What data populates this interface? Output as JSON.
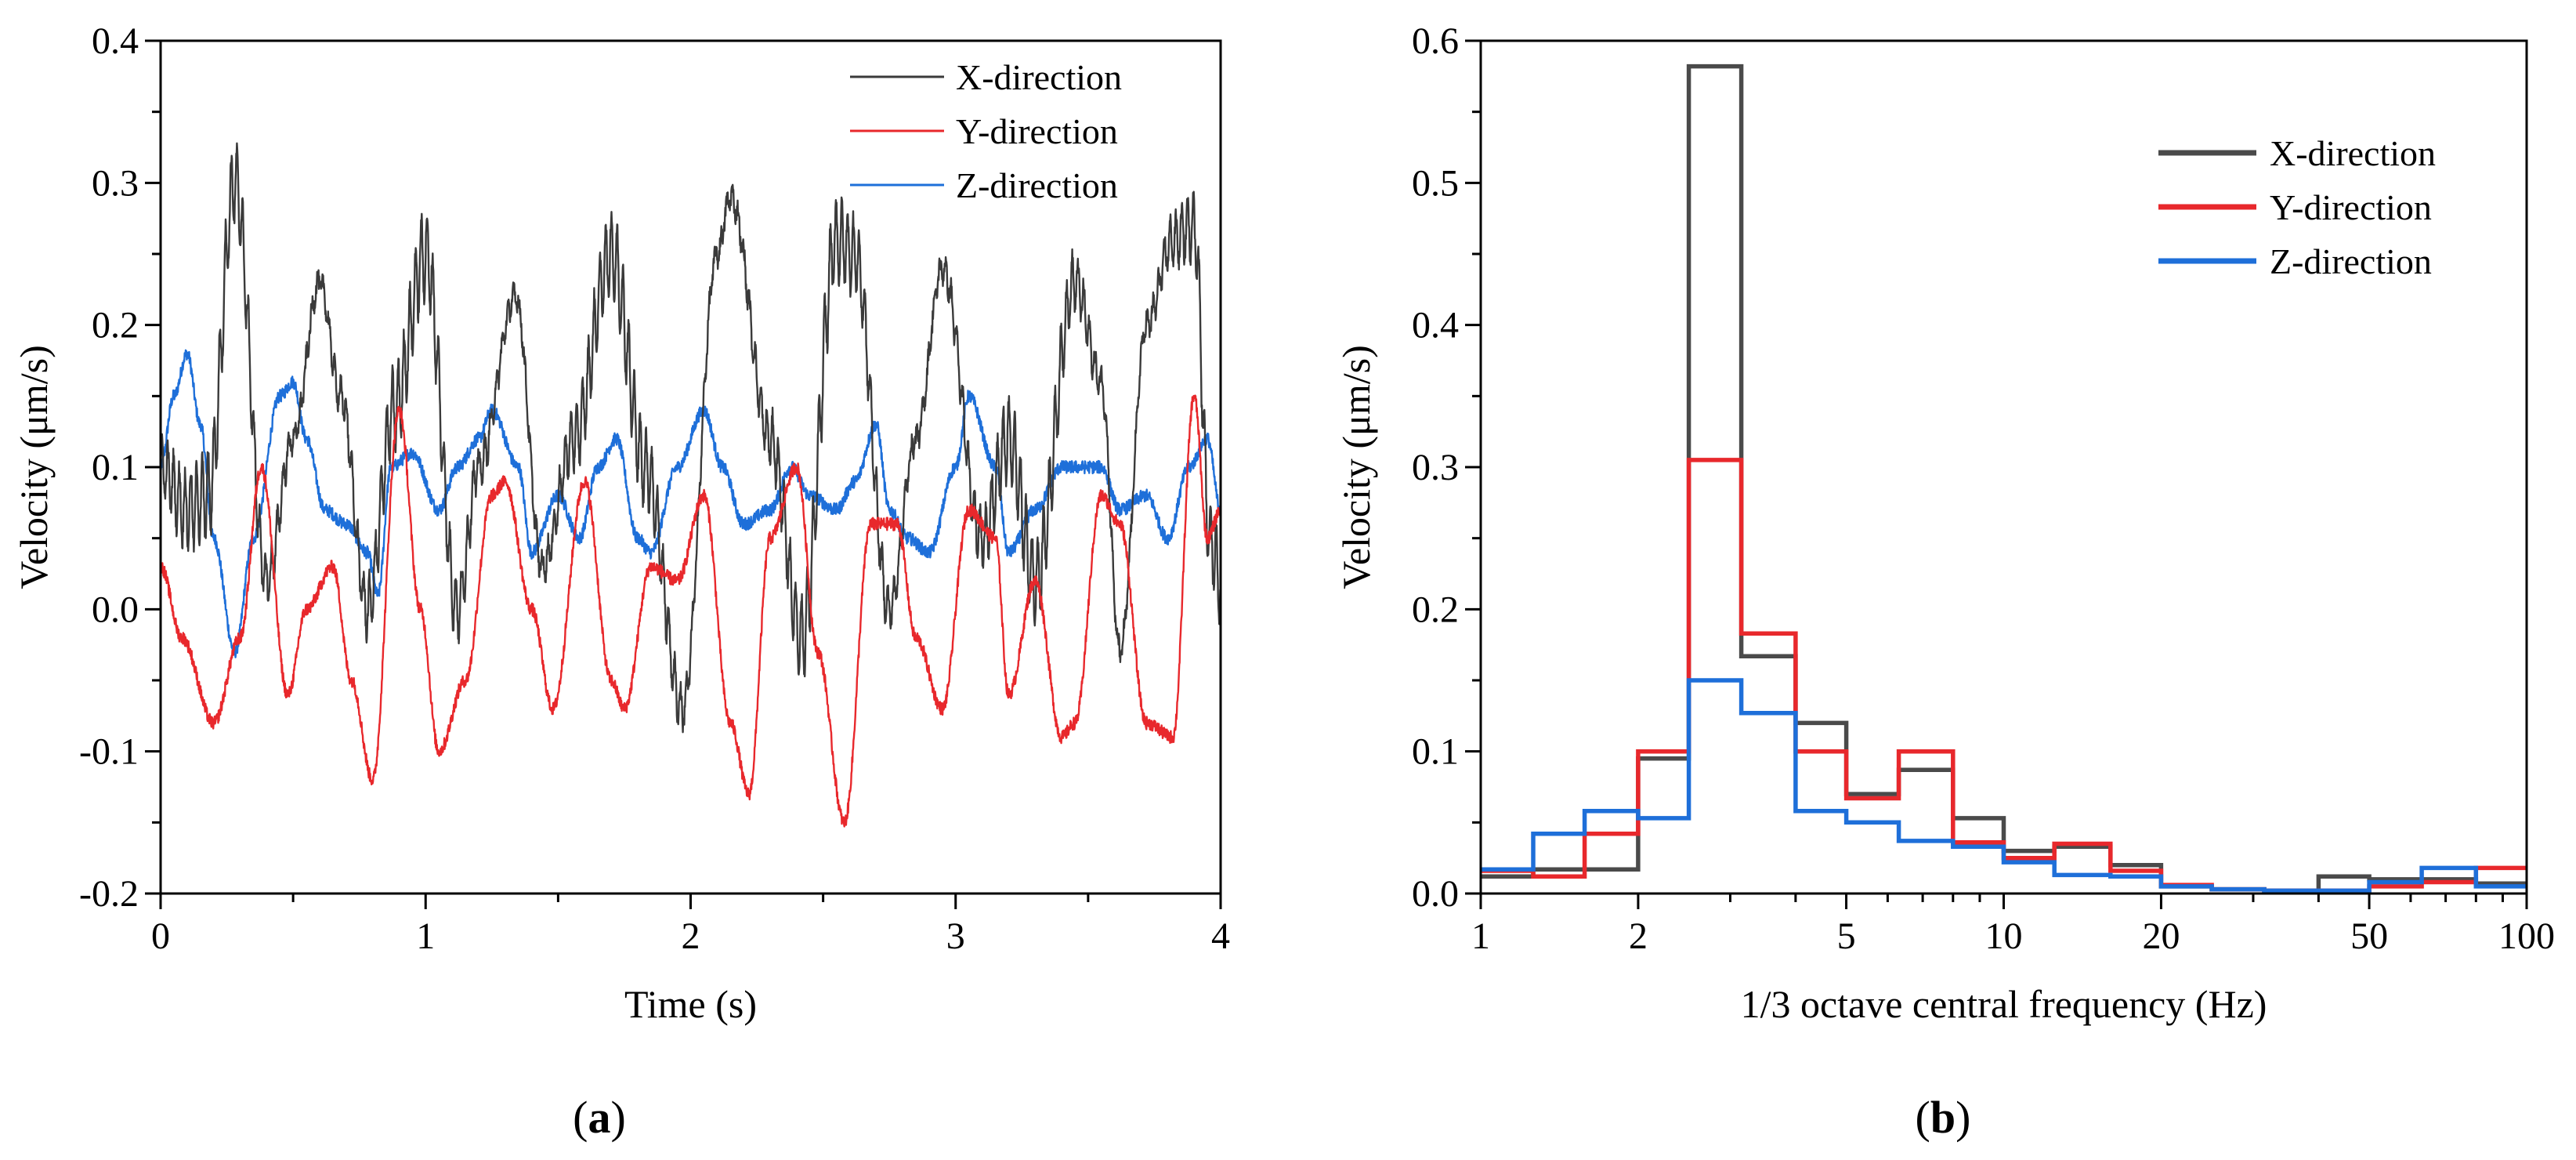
{
  "chart_data": [
    {
      "id": "a",
      "type": "line",
      "panel_label": "(a)",
      "title": "",
      "xlabel": "Time (s)",
      "ylabel": "Velocity (μm/s)",
      "xlim": [
        0,
        4
      ],
      "ylim": [
        -0.2,
        0.4
      ],
      "xticks": [
        0,
        1,
        2,
        3,
        4
      ],
      "xtick_labels": [
        "0",
        "1",
        "2",
        "3",
        "4"
      ],
      "yticks": [
        -0.2,
        -0.1,
        0.0,
        0.1,
        0.2,
        0.3,
        0.4
      ],
      "ytick_labels": [
        "-0.2",
        "-0.1",
        "0.0",
        "0.1",
        "0.2",
        "0.3",
        "0.4"
      ],
      "grid": false,
      "legend_position": "top-right",
      "series": [
        {
          "name": "X-direction",
          "color": "#3a3a3a",
          "envelope": {
            "t": [
              0,
              0.1,
              0.18,
              0.28,
              0.4,
              0.5,
              0.6,
              0.68,
              0.78,
              0.88,
              1.0,
              1.12,
              1.2,
              1.34,
              1.44,
              1.56,
              1.7,
              1.83,
              1.97,
              2.1,
              2.15,
              2.3,
              2.42,
              2.55,
              2.62,
              2.75,
              2.85,
              2.95,
              3.1,
              3.2,
              3.3,
              3.45,
              3.55,
              3.62,
              3.72,
              3.82,
              3.9,
              3.96,
              4.0
            ],
            "v": [
              0.1,
              0.07,
              0.08,
              0.3,
              0.02,
              0.12,
              0.23,
              0.15,
              0.0,
              0.14,
              0.25,
              0.0,
              0.1,
              0.22,
              0.03,
              0.12,
              0.25,
              0.1,
              -0.07,
              0.25,
              0.29,
              0.12,
              -0.02,
              0.26,
              0.25,
              0.0,
              0.12,
              0.24,
              0.05,
              0.12,
              0.02,
              0.23,
              0.16,
              -0.03,
              0.2,
              0.26,
              0.27,
              0.05,
              0.02
            ]
          },
          "ripple_amplitude": 0.03
        },
        {
          "name": "Y-direction",
          "color": "#e8282c",
          "points": {
            "t": [
              0,
              0.08,
              0.2,
              0.3,
              0.38,
              0.48,
              0.55,
              0.65,
              0.72,
              0.8,
              0.9,
              0.98,
              1.05,
              1.15,
              1.25,
              1.3,
              1.4,
              1.48,
              1.6,
              1.7,
              1.75,
              1.85,
              1.95,
              2.05,
              2.15,
              2.22,
              2.3,
              2.4,
              2.48,
              2.58,
              2.68,
              2.78,
              2.85,
              2.95,
              3.05,
              3.15,
              3.2,
              3.3,
              3.4,
              3.45,
              3.55,
              3.62,
              3.72,
              3.82,
              3.9,
              3.95,
              4.0
            ],
            "v": [
              0.03,
              -0.02,
              -0.08,
              -0.02,
              0.1,
              -0.06,
              0.0,
              0.03,
              -0.05,
              -0.12,
              0.14,
              0.0,
              -0.1,
              -0.05,
              0.08,
              0.09,
              0.0,
              -0.07,
              0.09,
              -0.05,
              -0.07,
              0.03,
              0.02,
              0.08,
              -0.08,
              -0.13,
              0.05,
              0.1,
              -0.03,
              -0.15,
              0.06,
              0.06,
              -0.02,
              -0.07,
              0.07,
              0.05,
              -0.06,
              0.02,
              -0.09,
              -0.08,
              0.08,
              0.06,
              -0.08,
              -0.09,
              0.15,
              0.05,
              0.07
            ]
          }
        },
        {
          "name": "Z-direction",
          "color": "#1e6fd9",
          "points": {
            "t": [
              0,
              0.05,
              0.1,
              0.15,
              0.2,
              0.28,
              0.35,
              0.45,
              0.5,
              0.55,
              0.62,
              0.7,
              0.78,
              0.82,
              0.87,
              0.95,
              1.05,
              1.12,
              1.2,
              1.25,
              1.35,
              1.4,
              1.5,
              1.58,
              1.65,
              1.72,
              1.8,
              1.85,
              1.95,
              2.05,
              2.12,
              2.2,
              2.3,
              2.38,
              2.45,
              2.55,
              2.62,
              2.7,
              2.75,
              2.82,
              2.9,
              3.0,
              3.05,
              3.15,
              3.2,
              3.3,
              3.4,
              3.48,
              3.55,
              3.62,
              3.72,
              3.8,
              3.88,
              3.95,
              4.0
            ],
            "v": [
              0.1,
              0.15,
              0.18,
              0.13,
              0.05,
              -0.03,
              0.05,
              0.15,
              0.16,
              0.12,
              0.07,
              0.06,
              0.04,
              0.01,
              0.1,
              0.11,
              0.07,
              0.1,
              0.12,
              0.14,
              0.1,
              0.04,
              0.08,
              0.05,
              0.1,
              0.12,
              0.05,
              0.04,
              0.1,
              0.14,
              0.1,
              0.06,
              0.07,
              0.1,
              0.08,
              0.07,
              0.09,
              0.13,
              0.07,
              0.05,
              0.04,
              0.1,
              0.15,
              0.1,
              0.04,
              0.07,
              0.1,
              0.1,
              0.1,
              0.07,
              0.08,
              0.05,
              0.1,
              0.12,
              0.07
            ]
          }
        }
      ]
    },
    {
      "id": "b",
      "type": "step",
      "panel_label": "(b)",
      "title": "",
      "xlabel": "1/3 octave central frequency (Hz)",
      "ylabel": "Velocity  (μm/s)",
      "xscale": "log",
      "xlim": [
        1,
        100
      ],
      "ylim": [
        0.0,
        0.6
      ],
      "xticks": [
        1,
        2,
        5,
        10,
        20,
        50,
        100
      ],
      "xtick_labels": [
        "1",
        "2",
        "5",
        "10",
        "20",
        "50",
        "100"
      ],
      "yticks": [
        0.0,
        0.1,
        0.2,
        0.3,
        0.4,
        0.5,
        0.6
      ],
      "ytick_labels": [
        "0.0",
        "0.1",
        "0.2",
        "0.3",
        "0.4",
        "0.5",
        "0.6"
      ],
      "grid": false,
      "legend_position": "top-right",
      "bin_edges": [
        1.0,
        1.26,
        1.58,
        2.0,
        2.5,
        3.15,
        4.0,
        5.0,
        6.3,
        8.0,
        10.0,
        12.5,
        16.0,
        20.0,
        25.0,
        31.5,
        40.0,
        50.0,
        63.0,
        80.0,
        100.0
      ],
      "series": [
        {
          "name": "X-direction",
          "color": "#4a4a4a",
          "values": [
            0.012,
            0.017,
            0.017,
            0.095,
            0.582,
            0.167,
            0.12,
            0.07,
            0.087,
            0.053,
            0.03,
            0.033,
            0.02,
            0.005,
            0.003,
            0.002,
            0.012,
            0.01,
            0.01,
            0.007
          ]
        },
        {
          "name": "Y-direction",
          "color": "#e8282c",
          "values": [
            0.016,
            0.012,
            0.042,
            0.1,
            0.305,
            0.183,
            0.1,
            0.067,
            0.1,
            0.036,
            0.025,
            0.035,
            0.016,
            0.006,
            0.003,
            0.002,
            0.002,
            0.005,
            0.008,
            0.018
          ]
        },
        {
          "name": "Z-direction",
          "color": "#1e6fd9",
          "values": [
            0.017,
            0.042,
            0.058,
            0.053,
            0.15,
            0.127,
            0.058,
            0.05,
            0.037,
            0.033,
            0.022,
            0.013,
            0.012,
            0.005,
            0.003,
            0.002,
            0.002,
            0.008,
            0.018,
            0.005
          ]
        }
      ]
    }
  ]
}
